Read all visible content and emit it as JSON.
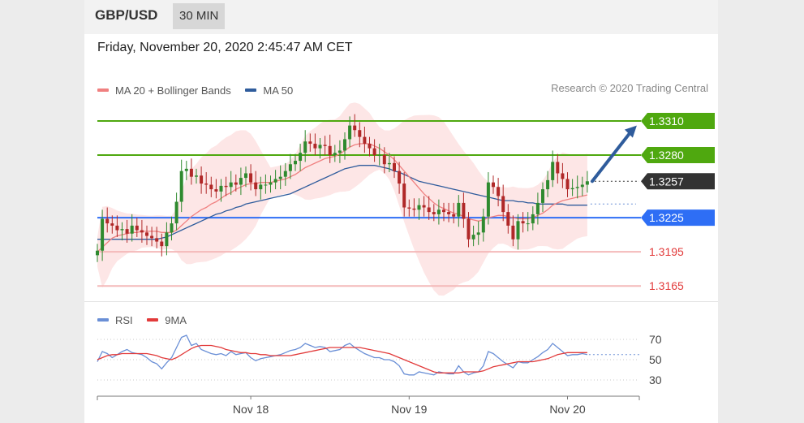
{
  "header": {
    "pair": "GBP/USD",
    "timeframe": "30 MIN",
    "datetime": "Friday, November 20, 2020 2:45:47 AM CET",
    "copyright": "Research © 2020 Trading Central"
  },
  "colors": {
    "support": "#2e6ef5",
    "resistance": "#4fa80f",
    "current": "#333333",
    "secondary": "#e23a3a",
    "ma20": "#f08080",
    "ma50": "#2f5c9c",
    "bollinger_fill": "#fde2e2",
    "rsi": "#6a8fd6",
    "rsi_ma": "#e23a3a",
    "up_candle": "#2f8a2f",
    "down_candle": "#b02828",
    "arrow": "#2f5c9c"
  },
  "chart_data": [
    {
      "type": "candlestick",
      "title": "GBP/USD",
      "legend": [
        {
          "name": "MA 20 + Bollinger Bands",
          "color": "#f08080"
        },
        {
          "name": "MA 50",
          "color": "#2f5c9c"
        }
      ],
      "ylim": [
        1.3158,
        1.3325
      ],
      "x_ticks": [
        {
          "label": "Nov 18",
          "idx": 31
        },
        {
          "label": "Nov 19",
          "idx": 63
        },
        {
          "label": "Nov 20",
          "idx": 95
        }
      ],
      "levels": [
        {
          "label": "1.3310",
          "value": 1.331,
          "kind": "resistance"
        },
        {
          "label": "1.3280",
          "value": 1.328,
          "kind": "resistance"
        },
        {
          "label": "1.3257",
          "value": 1.3257,
          "kind": "current"
        },
        {
          "label": "1.3225",
          "value": 1.3225,
          "kind": "support"
        },
        {
          "label": "1.3195",
          "value": 1.3195,
          "kind": "secondary"
        },
        {
          "label": "1.3165",
          "value": 1.3165,
          "kind": "secondary"
        }
      ],
      "forecast_arrow": {
        "from": [
          100,
          1.3257
        ],
        "to": [
          109,
          1.3306
        ]
      },
      "closes": [
        1.3196,
        1.3224,
        1.322,
        1.3218,
        1.3214,
        1.3215,
        1.3211,
        1.3218,
        1.3214,
        1.3212,
        1.3209,
        1.3207,
        1.3204,
        1.32,
        1.3212,
        1.322,
        1.3239,
        1.3266,
        1.3268,
        1.3261,
        1.3262,
        1.3255,
        1.3254,
        1.325,
        1.3248,
        1.3253,
        1.3252,
        1.3256,
        1.3254,
        1.326,
        1.3264,
        1.3256,
        1.325,
        1.3254,
        1.3254,
        1.3256,
        1.3259,
        1.3261,
        1.3266,
        1.3272,
        1.3275,
        1.3282,
        1.3292,
        1.329,
        1.3286,
        1.3289,
        1.3288,
        1.328,
        1.3282,
        1.3284,
        1.3294,
        1.3306,
        1.3302,
        1.3296,
        1.329,
        1.3286,
        1.328,
        1.328,
        1.3272,
        1.3273,
        1.3266,
        1.3255,
        1.3234,
        1.3233,
        1.3232,
        1.3236,
        1.3234,
        1.323,
        1.3228,
        1.3232,
        1.323,
        1.3228,
        1.3226,
        1.3238,
        1.3224,
        1.3206,
        1.321,
        1.3212,
        1.3226,
        1.3256,
        1.3252,
        1.3244,
        1.323,
        1.3218,
        1.3206,
        1.3222,
        1.322,
        1.322,
        1.3228,
        1.3238,
        1.325,
        1.3258,
        1.3274,
        1.3264,
        1.3259,
        1.325,
        1.3251,
        1.3252,
        1.3254,
        1.3257
      ],
      "ma20": [
        1.3195,
        1.3199,
        1.3203,
        1.3207,
        1.3209,
        1.321,
        1.3211,
        1.3212,
        1.3212,
        1.3213,
        1.3213,
        1.3213,
        1.3213,
        1.3212,
        1.3212,
        1.3212,
        1.3214,
        1.3218,
        1.3222,
        1.3226,
        1.3229,
        1.3232,
        1.3234,
        1.3237,
        1.3239,
        1.3242,
        1.3245,
        1.3247,
        1.325,
        1.3252,
        1.3254,
        1.3255,
        1.3255,
        1.3256,
        1.3256,
        1.3256,
        1.3257,
        1.3258,
        1.3259,
        1.3261,
        1.3263,
        1.3266,
        1.3269,
        1.3271,
        1.3273,
        1.3275,
        1.3277,
        1.3278,
        1.3279,
        1.3281,
        1.3284,
        1.3287,
        1.3289,
        1.329,
        1.329,
        1.329,
        1.3288,
        1.3286,
        1.3283,
        1.328,
        1.3276,
        1.3271,
        1.3266,
        1.3261,
        1.3256,
        1.3251,
        1.3246,
        1.3242,
        1.3238,
        1.3235,
        1.3233,
        1.3231,
        1.3229,
        1.3228,
        1.3226,
        1.3224,
        1.3223,
        1.3222,
        1.3223,
        1.3225,
        1.3226,
        1.3227,
        1.3227,
        1.3226,
        1.3225,
        1.3224,
        1.3224,
        1.3224,
        1.3225,
        1.3227,
        1.3229,
        1.3232,
        1.3236,
        1.3238,
        1.324,
        1.3241,
        1.3242,
        1.3243,
        1.3244,
        1.3245
      ],
      "ma50": [
        1.3206,
        1.3206,
        1.3206,
        1.3206,
        1.3206,
        1.3206,
        1.3206,
        1.3206,
        1.3206,
        1.3206,
        1.3206,
        1.3206,
        1.3206,
        1.3207,
        1.3208,
        1.321,
        1.3212,
        1.3214,
        1.3216,
        1.3218,
        1.322,
        1.3222,
        1.3224,
        1.3226,
        1.3228,
        1.3229,
        1.3231,
        1.3232,
        1.3234,
        1.3235,
        1.3237,
        1.3238,
        1.3239,
        1.324,
        1.3241,
        1.3242,
        1.3243,
        1.3244,
        1.3245,
        1.3246,
        1.3248,
        1.325,
        1.3252,
        1.3254,
        1.3256,
        1.3258,
        1.326,
        1.3262,
        1.3264,
        1.3266,
        1.3268,
        1.3269,
        1.327,
        1.3271,
        1.3271,
        1.3271,
        1.3271,
        1.327,
        1.3269,
        1.3268,
        1.3266,
        1.3265,
        1.3263,
        1.3261,
        1.3259,
        1.3257,
        1.3256,
        1.3255,
        1.3254,
        1.3253,
        1.3252,
        1.3251,
        1.325,
        1.3249,
        1.3248,
        1.3247,
        1.3246,
        1.3245,
        1.3244,
        1.3243,
        1.3242,
        1.3241,
        1.324,
        1.324,
        1.324,
        1.3239,
        1.3239,
        1.3238,
        1.3238,
        1.3237,
        1.3237,
        1.3237,
        1.3237,
        1.3237,
        1.3237,
        1.3236,
        1.3236,
        1.3236,
        1.3236,
        1.3236
      ]
    },
    {
      "type": "line",
      "title": "RSI",
      "legend": [
        {
          "name": "RSI",
          "color": "#6a8fd6"
        },
        {
          "name": "9MA",
          "color": "#e23a3a"
        }
      ],
      "ylim": [
        22,
        78
      ],
      "y_ticks": [
        70,
        50,
        30
      ],
      "current_rsi": 55,
      "rsi": [
        48,
        58,
        56,
        52,
        55,
        58,
        60,
        57,
        56,
        55,
        52,
        48,
        46,
        41,
        47,
        52,
        62,
        72,
        74,
        64,
        66,
        60,
        58,
        56,
        55,
        56,
        54,
        58,
        55,
        56,
        57,
        52,
        49,
        51,
        52,
        53,
        54,
        55,
        57,
        59,
        60,
        62,
        66,
        64,
        62,
        63,
        62,
        58,
        59,
        60,
        64,
        66,
        62,
        59,
        56,
        54,
        52,
        52,
        50,
        50,
        48,
        44,
        36,
        35,
        35,
        38,
        37,
        36,
        35,
        38,
        37,
        36,
        36,
        44,
        38,
        35,
        37,
        38,
        44,
        58,
        56,
        52,
        48,
        45,
        42,
        48,
        47,
        47,
        50,
        53,
        57,
        60,
        66,
        62,
        58,
        54,
        55,
        55,
        56,
        55
      ],
      "rsi_ma": [
        50,
        52,
        54,
        55,
        55,
        56,
        56,
        56,
        56,
        56,
        56,
        55,
        54,
        52,
        51,
        50,
        52,
        55,
        58,
        61,
        63,
        64,
        64,
        64,
        63,
        62,
        60,
        59,
        58,
        57,
        57,
        56,
        56,
        55,
        55,
        54,
        54,
        54,
        54,
        54,
        55,
        56,
        57,
        58,
        59,
        60,
        61,
        62,
        62,
        62,
        62,
        62,
        62,
        62,
        61,
        60,
        59,
        58,
        57,
        56,
        54,
        52,
        50,
        48,
        46,
        44,
        42,
        40,
        38,
        37,
        37,
        37,
        37,
        37,
        38,
        38,
        38,
        38,
        39,
        41,
        43,
        44,
        45,
        46,
        47,
        48,
        48,
        48,
        48,
        49,
        50,
        51,
        53,
        55,
        56,
        57,
        57,
        57,
        57,
        57
      ]
    }
  ]
}
